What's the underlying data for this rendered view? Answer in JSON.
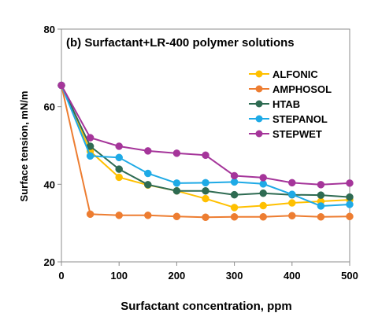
{
  "chart_data": {
    "type": "line",
    "title": "(b)  Surfactant+LR-400 polymer solutions",
    "xlabel": "Surfactant concentration, ppm",
    "ylabel": "Surface tension, mN/m",
    "xlim": [
      0,
      500
    ],
    "ylim": [
      20,
      80
    ],
    "xticks": [
      "0",
      "100",
      "200",
      "300",
      "400",
      "500"
    ],
    "yticks": [
      "20",
      "40",
      "60",
      "80"
    ],
    "grid": false,
    "legend_position": "right",
    "x": [
      0,
      50,
      100,
      150,
      200,
      250,
      300,
      350,
      400,
      450,
      500
    ],
    "series": [
      {
        "name": "ALFONIC",
        "color": "#FFC000",
        "values": [
          65.5,
          48.5,
          41.8,
          39.8,
          38.3,
          36.3,
          34.0,
          34.5,
          35.2,
          35.6,
          36.0
        ]
      },
      {
        "name": "AMPHOSOL",
        "color": "#ED7D31",
        "values": [
          65.5,
          32.3,
          32.0,
          32.0,
          31.7,
          31.5,
          31.6,
          31.6,
          31.9,
          31.6,
          31.7
        ]
      },
      {
        "name": "HTAB",
        "color": "#2E6B52",
        "values": [
          65.5,
          49.8,
          43.9,
          39.9,
          38.3,
          38.3,
          37.3,
          37.7,
          37.3,
          37.2,
          36.7
        ]
      },
      {
        "name": "STEPANOL",
        "color": "#1EAAE6",
        "values": [
          65.5,
          47.3,
          46.9,
          42.8,
          40.3,
          40.4,
          40.6,
          40.1,
          37.4,
          34.4,
          34.8
        ]
      },
      {
        "name": "STEPWET",
        "color": "#A5359A",
        "values": [
          65.5,
          52.0,
          49.8,
          48.6,
          48.0,
          47.5,
          42.2,
          41.7,
          40.4,
          39.9,
          40.3
        ]
      }
    ]
  }
}
